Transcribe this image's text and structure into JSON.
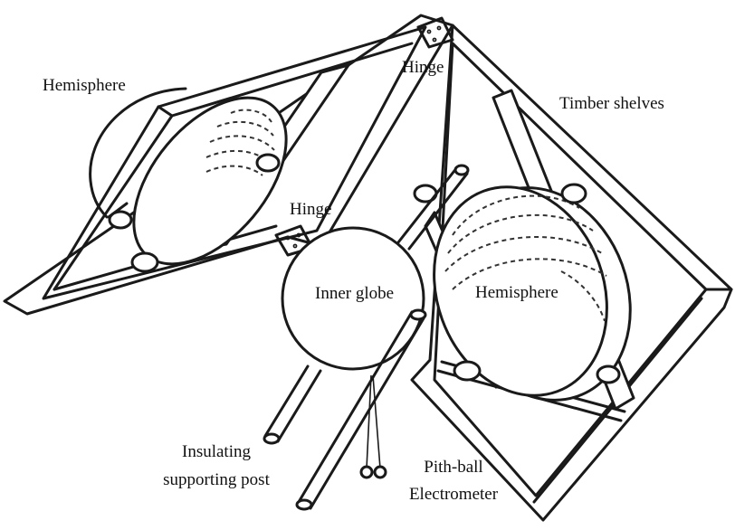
{
  "labels": {
    "hemisphere_left": "Hemisphere",
    "hinge_top": "Hinge",
    "timber_shelves": "Timber shelves",
    "hinge_middle": "Hinge",
    "inner_globe": "Inner globe",
    "hemisphere_right": "Hemisphere",
    "insulating_post_line1": "Insulating",
    "insulating_post_line2": "supporting post",
    "electrometer_line1": "Pith-ball",
    "electrometer_line2": "Electrometer"
  },
  "colors": {
    "line": "#1a1a1a",
    "background": "#ffffff",
    "text": "#111111"
  }
}
